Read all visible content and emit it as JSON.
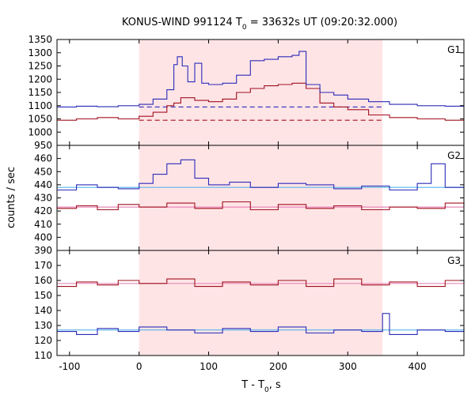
{
  "title": {
    "prefix": "KONUS-WIND 991124 T",
    "sub": "0",
    "suffix": " = 33632s UT (09:20:32.000)"
  },
  "xlabel": {
    "prefix": "T - T",
    "sub": "0",
    "suffix": ", s"
  },
  "ylabel": "counts / sec",
  "colors": {
    "blue": "#2b2bb8",
    "red": "#a0101e",
    "fit_blue": "#56b4e9",
    "fit_red": "#e888b8",
    "shade": "#ffe4e6"
  },
  "chart_data": {
    "type": "line",
    "x_axis": {
      "lim": [
        -118,
        467
      ],
      "ticks": [
        -100,
        0,
        100,
        200,
        300,
        400
      ],
      "tick_labels": [
        "-100",
        "0",
        "100",
        "200",
        "300",
        "400"
      ]
    },
    "shaded_interval": [
      0,
      350
    ],
    "panels": [
      {
        "label": "G1",
        "ylim": [
          950,
          1350
        ],
        "yticks": [
          950,
          1000,
          1050,
          1100,
          1150,
          1200,
          1250,
          1300,
          1350
        ],
        "ytick_labels": [
          "950",
          "1000",
          "1050",
          "1100",
          "1150",
          "1200",
          "1250",
          "1300",
          "1350"
        ],
        "background_levels": {
          "blue": 1095,
          "red": 1045
        },
        "blue_series": [
          {
            "x": -118,
            "y": 1095
          },
          {
            "x": -90,
            "y": 1098
          },
          {
            "x": -60,
            "y": 1096
          },
          {
            "x": -30,
            "y": 1100
          },
          {
            "x": 0,
            "y": 1105
          },
          {
            "x": 20,
            "y": 1125
          },
          {
            "x": 40,
            "y": 1160
          },
          {
            "x": 50,
            "y": 1255
          },
          {
            "x": 55,
            "y": 1285
          },
          {
            "x": 62,
            "y": 1250
          },
          {
            "x": 70,
            "y": 1190
          },
          {
            "x": 80,
            "y": 1260
          },
          {
            "x": 90,
            "y": 1185
          },
          {
            "x": 100,
            "y": 1180
          },
          {
            "x": 120,
            "y": 1185
          },
          {
            "x": 140,
            "y": 1215
          },
          {
            "x": 160,
            "y": 1270
          },
          {
            "x": 180,
            "y": 1275
          },
          {
            "x": 200,
            "y": 1285
          },
          {
            "x": 220,
            "y": 1290
          },
          {
            "x": 230,
            "y": 1305
          },
          {
            "x": 240,
            "y": 1180
          },
          {
            "x": 260,
            "y": 1150
          },
          {
            "x": 280,
            "y": 1140
          },
          {
            "x": 300,
            "y": 1125
          },
          {
            "x": 330,
            "y": 1115
          },
          {
            "x": 360,
            "y": 1105
          },
          {
            "x": 400,
            "y": 1100
          },
          {
            "x": 440,
            "y": 1098
          },
          {
            "x": 467,
            "y": 1100
          }
        ],
        "red_series": [
          {
            "x": -118,
            "y": 1045
          },
          {
            "x": -90,
            "y": 1050
          },
          {
            "x": -60,
            "y": 1055
          },
          {
            "x": -30,
            "y": 1050
          },
          {
            "x": 0,
            "y": 1060
          },
          {
            "x": 20,
            "y": 1075
          },
          {
            "x": 40,
            "y": 1100
          },
          {
            "x": 50,
            "y": 1110
          },
          {
            "x": 60,
            "y": 1130
          },
          {
            "x": 80,
            "y": 1120
          },
          {
            "x": 100,
            "y": 1115
          },
          {
            "x": 120,
            "y": 1125
          },
          {
            "x": 140,
            "y": 1150
          },
          {
            "x": 160,
            "y": 1165
          },
          {
            "x": 180,
            "y": 1175
          },
          {
            "x": 200,
            "y": 1180
          },
          {
            "x": 220,
            "y": 1185
          },
          {
            "x": 240,
            "y": 1165
          },
          {
            "x": 260,
            "y": 1110
          },
          {
            "x": 280,
            "y": 1095
          },
          {
            "x": 300,
            "y": 1085
          },
          {
            "x": 330,
            "y": 1065
          },
          {
            "x": 360,
            "y": 1055
          },
          {
            "x": 400,
            "y": 1050
          },
          {
            "x": 440,
            "y": 1045
          },
          {
            "x": 467,
            "y": 1048
          }
        ]
      },
      {
        "label": "G2",
        "ylim": [
          390,
          470
        ],
        "yticks": [
          390,
          400,
          410,
          420,
          430,
          440,
          450,
          460
        ],
        "ytick_labels": [
          "390",
          "400",
          "410",
          "420",
          "430",
          "440",
          "450",
          "460"
        ],
        "background_levels": {
          "blue": 438,
          "red": 423
        },
        "blue_series": [
          {
            "x": -118,
            "y": 436
          },
          {
            "x": -90,
            "y": 440
          },
          {
            "x": -60,
            "y": 438
          },
          {
            "x": -30,
            "y": 437
          },
          {
            "x": 0,
            "y": 441
          },
          {
            "x": 20,
            "y": 448
          },
          {
            "x": 40,
            "y": 456
          },
          {
            "x": 60,
            "y": 459
          },
          {
            "x": 80,
            "y": 445
          },
          {
            "x": 100,
            "y": 440
          },
          {
            "x": 130,
            "y": 442
          },
          {
            "x": 160,
            "y": 438
          },
          {
            "x": 200,
            "y": 441
          },
          {
            "x": 240,
            "y": 440
          },
          {
            "x": 280,
            "y": 437
          },
          {
            "x": 320,
            "y": 439
          },
          {
            "x": 360,
            "y": 436
          },
          {
            "x": 400,
            "y": 441
          },
          {
            "x": 420,
            "y": 456
          },
          {
            "x": 440,
            "y": 438
          },
          {
            "x": 467,
            "y": 440
          }
        ],
        "red_series": [
          {
            "x": -118,
            "y": 422
          },
          {
            "x": -90,
            "y": 424
          },
          {
            "x": -60,
            "y": 421
          },
          {
            "x": -30,
            "y": 425
          },
          {
            "x": 0,
            "y": 423
          },
          {
            "x": 40,
            "y": 426
          },
          {
            "x": 80,
            "y": 422
          },
          {
            "x": 120,
            "y": 427
          },
          {
            "x": 160,
            "y": 421
          },
          {
            "x": 200,
            "y": 425
          },
          {
            "x": 240,
            "y": 422
          },
          {
            "x": 280,
            "y": 424
          },
          {
            "x": 320,
            "y": 421
          },
          {
            "x": 360,
            "y": 423
          },
          {
            "x": 400,
            "y": 422
          },
          {
            "x": 440,
            "y": 426
          },
          {
            "x": 467,
            "y": 423
          }
        ]
      },
      {
        "label": "G3",
        "ylim": [
          110,
          180
        ],
        "yticks": [
          110,
          120,
          130,
          140,
          150,
          160,
          170
        ],
        "ytick_labels": [
          "110",
          "120",
          "130",
          "140",
          "150",
          "160",
          "170"
        ],
        "background_levels": {
          "blue": 127,
          "red": 158
        },
        "blue_series": [
          {
            "x": -118,
            "y": 126
          },
          {
            "x": -90,
            "y": 124
          },
          {
            "x": -60,
            "y": 128
          },
          {
            "x": -30,
            "y": 126
          },
          {
            "x": 0,
            "y": 129
          },
          {
            "x": 40,
            "y": 127
          },
          {
            "x": 80,
            "y": 125
          },
          {
            "x": 120,
            "y": 128
          },
          {
            "x": 160,
            "y": 126
          },
          {
            "x": 200,
            "y": 129
          },
          {
            "x": 240,
            "y": 125
          },
          {
            "x": 280,
            "y": 127
          },
          {
            "x": 320,
            "y": 126
          },
          {
            "x": 350,
            "y": 138
          },
          {
            "x": 360,
            "y": 124
          },
          {
            "x": 400,
            "y": 127
          },
          {
            "x": 440,
            "y": 126
          },
          {
            "x": 467,
            "y": 128
          }
        ],
        "red_series": [
          {
            "x": -118,
            "y": 156
          },
          {
            "x": -90,
            "y": 159
          },
          {
            "x": -60,
            "y": 157
          },
          {
            "x": -30,
            "y": 160
          },
          {
            "x": 0,
            "y": 158
          },
          {
            "x": 40,
            "y": 161
          },
          {
            "x": 80,
            "y": 156
          },
          {
            "x": 120,
            "y": 159
          },
          {
            "x": 160,
            "y": 157
          },
          {
            "x": 200,
            "y": 160
          },
          {
            "x": 240,
            "y": 156
          },
          {
            "x": 280,
            "y": 161
          },
          {
            "x": 320,
            "y": 157
          },
          {
            "x": 360,
            "y": 159
          },
          {
            "x": 400,
            "y": 156
          },
          {
            "x": 440,
            "y": 160
          },
          {
            "x": 467,
            "y": 158
          }
        ]
      }
    ]
  }
}
